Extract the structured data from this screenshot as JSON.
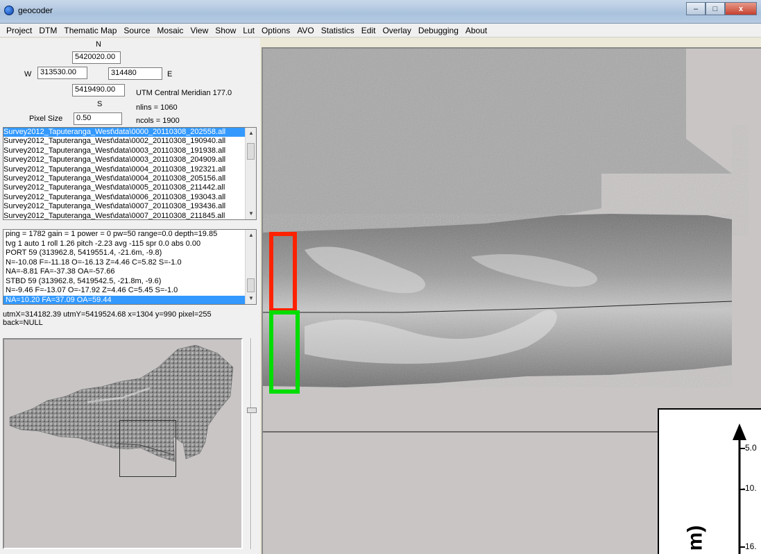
{
  "window": {
    "title": "geocoder",
    "minimize_glyph": "–",
    "maximize_glyph": "□",
    "close_glyph": "x"
  },
  "menu": [
    "Project",
    "DTM",
    "Thematic Map",
    "Source",
    "Mosaic",
    "View",
    "Show",
    "Lut",
    "Options",
    "AVO",
    "Statistics",
    "Edit",
    "Overlay",
    "Debugging",
    "About"
  ],
  "bounds": {
    "n_label": "N",
    "n_value": "5420020.00",
    "w_label": "W",
    "w_value": "313530.00",
    "e_value": "314480",
    "e_label": "E",
    "s_value": "5419490.00",
    "s_label": "S",
    "utm_text": "UTM Central Meridian 177.0",
    "nlins": "nlins = 1060",
    "pixel_label": "Pixel Size",
    "pixel_value": "0.50",
    "ncols": "ncols = 1900"
  },
  "files": [
    "Survey2012_Taputeranga_West\\data\\0000_20110308_202558.all",
    "Survey2012_Taputeranga_West\\data\\0002_20110308_190940.all",
    "Survey2012_Taputeranga_West\\data\\0003_20110308_191938.all",
    "Survey2012_Taputeranga_West\\data\\0003_20110308_204909.all",
    "Survey2012_Taputeranga_West\\data\\0004_20110308_192321.all",
    "Survey2012_Taputeranga_West\\data\\0004_20110308_205156.all",
    "Survey2012_Taputeranga_West\\data\\0005_20110308_211442.all",
    "Survey2012_Taputeranga_West\\data\\0006_20110308_193043.all",
    "Survey2012_Taputeranga_West\\data\\0007_20110308_193436.all",
    "Survey2012_Taputeranga_West\\data\\0007_20110308_211845.all"
  ],
  "ping_info": [
    "ping = 1782 gain = 1 power = 0 pw=50 range=0.0 depth=19.85",
    "tvg 1  auto 1 roll 1.26 pitch -2.23 avg -115 spr 0.0 abs 0.00",
    "PORT 59 (313962.8,  5419551.4,  -21.6m, -9.8)",
    "N=-10.08 F=-11.18 O=-16.13 Z=4.46 C=5.82 S=-1.0",
    "NA=-8.81 FA=-37.38 OA=-57.66",
    "STBD 59 (313962.8,  5419542.5,   -21.8m, -9.6)",
    "N=-9.46 F=-13.07 O=-17.92 Z=4.46 C=5.45 S=-1.0",
    "NA=10.20 FA=37.09 OA=59.44"
  ],
  "status": {
    "line1": "utmX=314182.39 utmY=5419524.68 x=1304  y=990  pixel=255",
    "line2": "back=NULL"
  },
  "inset": {
    "ticks": [
      "-5.0",
      "-10.",
      "-16."
    ],
    "unit": "m)"
  },
  "colors": {
    "highlight": "#3399ff",
    "red_box": "#ff2200",
    "green_box": "#00dd00"
  }
}
